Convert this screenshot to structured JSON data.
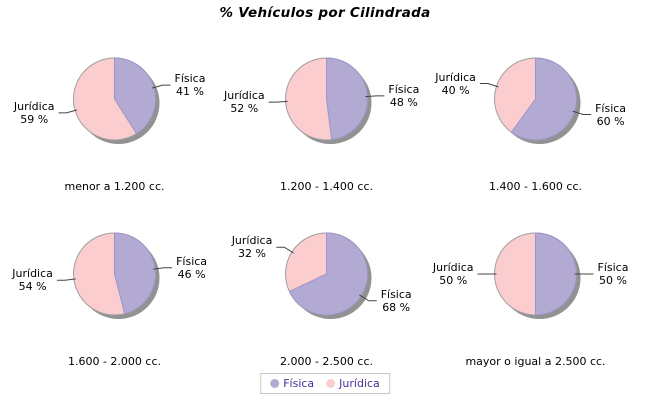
{
  "chart_data": {
    "type": "pie",
    "title": "% Vehículos por Cilindrada",
    "layout": "2 rows x 3 columns of pies, shared legend at bottom",
    "value_suffix": " %",
    "series": [
      {
        "name": "Física",
        "color": "#b3aad4"
      },
      {
        "name": "Jurídica",
        "color": "#fccdce"
      }
    ],
    "charts": [
      {
        "category": "menor a 1.200 cc.",
        "values": [
          41,
          59
        ]
      },
      {
        "category": "1.200 - 1.400 cc.",
        "values": [
          48,
          52
        ]
      },
      {
        "category": "1.400 - 1.600 cc.",
        "values": [
          60,
          40
        ]
      },
      {
        "category": "1.600 - 2.000 cc.",
        "values": [
          46,
          54
        ]
      },
      {
        "category": "2.000 - 2.500 cc.",
        "values": [
          68,
          32
        ]
      },
      {
        "category": "mayor o igual a 2.500 cc.",
        "values": [
          50,
          50
        ]
      }
    ],
    "legend_position": "bottom",
    "shadow_color": "#929292",
    "outline_color": "#a0a0a0",
    "slice_divider_color": "#9d94c4",
    "leader_line_color": "#444444",
    "legend_text_color": "#4b2d8f"
  }
}
